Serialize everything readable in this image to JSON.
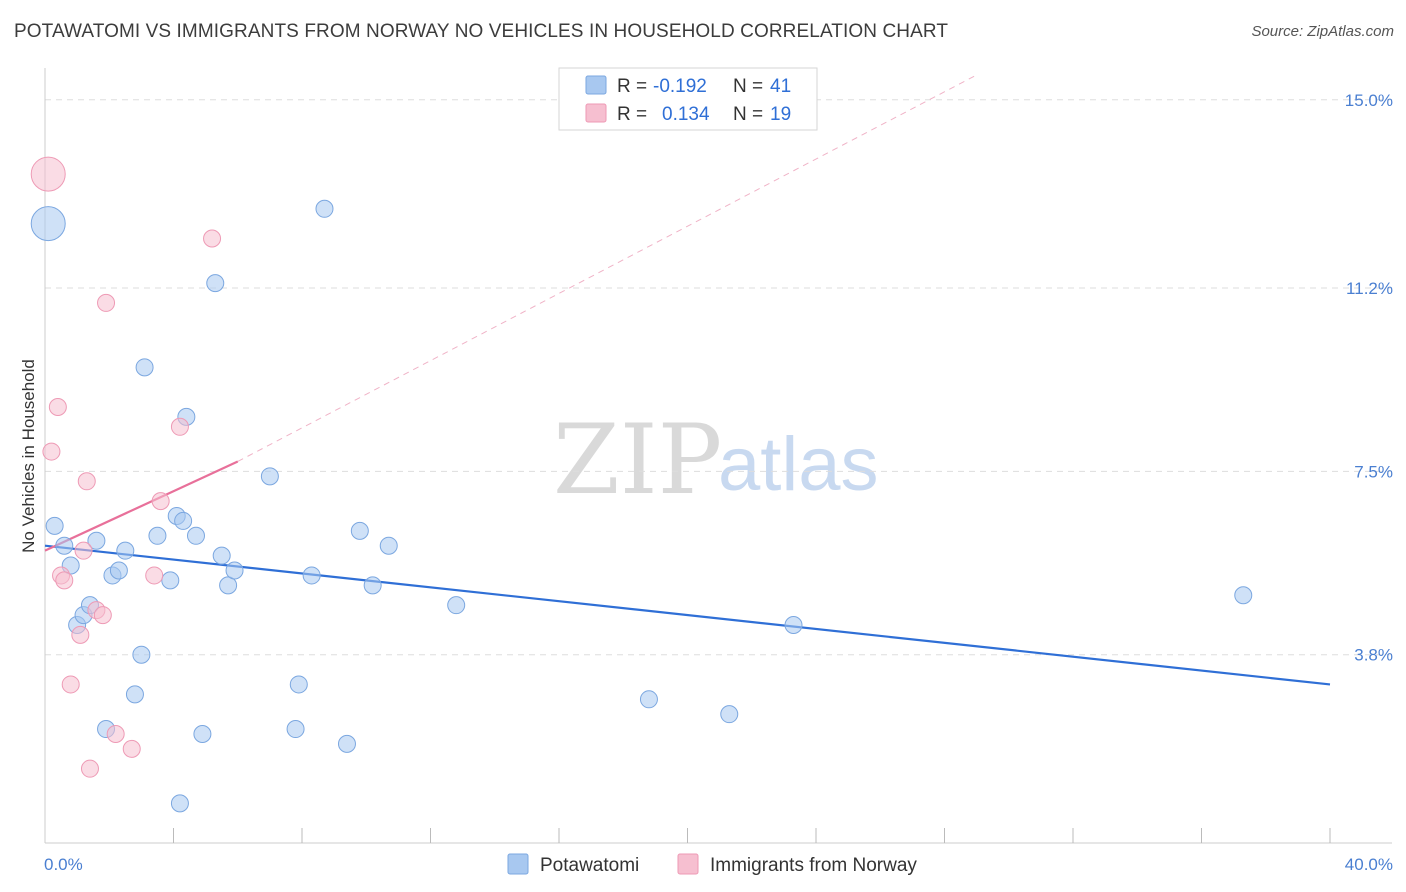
{
  "title": "POTAWATOMI VS IMMIGRANTS FROM NORWAY NO VEHICLES IN HOUSEHOLD CORRELATION CHART",
  "source": "Source: ZipAtlas.com",
  "watermark": {
    "zip": "ZIP",
    "atlas": "atlas"
  },
  "colors": {
    "blue_fill": "#a8c8f0",
    "blue_stroke": "#7ba7e0",
    "blue_line": "#2f6fd6",
    "pink_fill": "#f6bfd0",
    "pink_stroke": "#ee9ab5",
    "pink_line": "#e8709a",
    "grid": "#dddddd",
    "tick_label": "#4a7fd1"
  },
  "legend": {
    "rows": [
      {
        "r_label": "R = ",
        "r_value": "-0.192",
        "n_label": "N = ",
        "n_value": "41"
      },
      {
        "r_label": "R = ",
        "r_value": "0.134",
        "n_label": "N = ",
        "n_value": "19"
      }
    ]
  },
  "bottom_legend": [
    "Potawatomi",
    "Immigrants from Norway"
  ],
  "chart_data": {
    "type": "scatter",
    "title": "POTAWATOMI VS IMMIGRANTS FROM NORWAY NO VEHICLES IN HOUSEHOLD CORRELATION CHART",
    "xlabel": "",
    "ylabel": "No Vehicles in Household",
    "xlim": [
      0,
      40
    ],
    "ylim": [
      0,
      15.5
    ],
    "x_tick_labels": [
      "0.0%",
      "40.0%"
    ],
    "y_ticks": [
      3.8,
      7.5,
      11.2,
      15.0
    ],
    "y_tick_labels": [
      "3.8%",
      "7.5%",
      "11.2%",
      "15.0%"
    ],
    "grid": true,
    "series": [
      {
        "name": "Potawatomi",
        "r": -0.192,
        "n": 41,
        "trend": {
          "x": [
            0,
            40
          ],
          "y": [
            6.0,
            3.2
          ]
        },
        "points": [
          {
            "x": 0.1,
            "y": 12.5,
            "big": true
          },
          {
            "x": 0.3,
            "y": 6.4
          },
          {
            "x": 0.6,
            "y": 6.0
          },
          {
            "x": 0.8,
            "y": 5.6
          },
          {
            "x": 1.0,
            "y": 4.4
          },
          {
            "x": 1.2,
            "y": 4.6
          },
          {
            "x": 1.4,
            "y": 4.8
          },
          {
            "x": 1.6,
            "y": 6.1
          },
          {
            "x": 1.9,
            "y": 2.3
          },
          {
            "x": 2.1,
            "y": 5.4
          },
          {
            "x": 2.3,
            "y": 5.5
          },
          {
            "x": 2.5,
            "y": 5.9
          },
          {
            "x": 2.8,
            "y": 3.0
          },
          {
            "x": 3.0,
            "y": 3.8
          },
          {
            "x": 3.1,
            "y": 9.6
          },
          {
            "x": 3.5,
            "y": 6.2
          },
          {
            "x": 3.9,
            "y": 5.3
          },
          {
            "x": 4.1,
            "y": 6.6
          },
          {
            "x": 4.2,
            "y": 0.8
          },
          {
            "x": 4.3,
            "y": 6.5
          },
          {
            "x": 4.4,
            "y": 8.6
          },
          {
            "x": 4.7,
            "y": 6.2
          },
          {
            "x": 4.9,
            "y": 2.2
          },
          {
            "x": 5.3,
            "y": 11.3
          },
          {
            "x": 5.5,
            "y": 5.8
          },
          {
            "x": 5.7,
            "y": 5.2
          },
          {
            "x": 5.9,
            "y": 5.5
          },
          {
            "x": 7.0,
            "y": 7.4
          },
          {
            "x": 7.8,
            "y": 2.3
          },
          {
            "x": 7.9,
            "y": 3.2
          },
          {
            "x": 8.3,
            "y": 5.4
          },
          {
            "x": 8.7,
            "y": 12.8
          },
          {
            "x": 9.4,
            "y": 2.0
          },
          {
            "x": 9.8,
            "y": 6.3
          },
          {
            "x": 10.2,
            "y": 5.2
          },
          {
            "x": 10.7,
            "y": 6.0
          },
          {
            "x": 12.8,
            "y": 4.8
          },
          {
            "x": 18.8,
            "y": 2.9
          },
          {
            "x": 21.3,
            "y": 2.6
          },
          {
            "x": 23.3,
            "y": 4.4
          },
          {
            "x": 37.3,
            "y": 5.0
          }
        ]
      },
      {
        "name": "Immigrants from Norway",
        "r": 0.134,
        "n": 19,
        "trend": {
          "x": [
            0,
            6.0
          ],
          "y": [
            5.9,
            7.7
          ]
        },
        "trend_extended": {
          "x": [
            6.0,
            29.0
          ],
          "y": [
            7.7,
            15.5
          ]
        },
        "points": [
          {
            "x": 0.1,
            "y": 13.5,
            "big": true
          },
          {
            "x": 0.2,
            "y": 7.9
          },
          {
            "x": 0.4,
            "y": 8.8
          },
          {
            "x": 0.5,
            "y": 5.4
          },
          {
            "x": 0.6,
            "y": 5.3
          },
          {
            "x": 0.8,
            "y": 3.2
          },
          {
            "x": 1.1,
            "y": 4.2
          },
          {
            "x": 1.2,
            "y": 5.9
          },
          {
            "x": 1.3,
            "y": 7.3
          },
          {
            "x": 1.4,
            "y": 1.5
          },
          {
            "x": 1.6,
            "y": 4.7
          },
          {
            "x": 1.8,
            "y": 4.6
          },
          {
            "x": 1.9,
            "y": 10.9
          },
          {
            "x": 2.2,
            "y": 2.2
          },
          {
            "x": 2.7,
            "y": 1.9
          },
          {
            "x": 3.4,
            "y": 5.4
          },
          {
            "x": 3.6,
            "y": 6.9
          },
          {
            "x": 4.2,
            "y": 8.4
          },
          {
            "x": 5.2,
            "y": 12.2
          }
        ]
      }
    ]
  }
}
